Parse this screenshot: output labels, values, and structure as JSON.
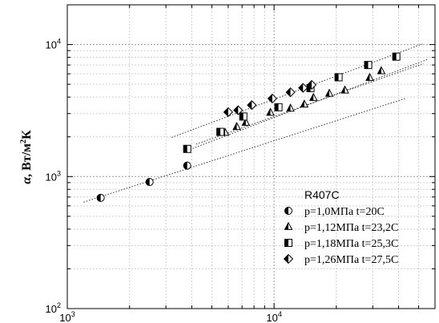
{
  "chart_data": {
    "type": "scatter",
    "x_scale": "log",
    "y_scale": "log",
    "xlim": [
      1000,
      60000
    ],
    "ylim": [
      100,
      20000
    ],
    "grid": true,
    "legend_placement": "bottom-right",
    "ylabel": {
      "symbol": "α",
      "unit_main": "Вт/м",
      "unit_sup": "2",
      "unit_end": "К"
    },
    "x_ticks": [
      {
        "value": 1000,
        "base": "10",
        "exp": "3"
      },
      {
        "value": 10000,
        "base": "10",
        "exp": "4"
      }
    ],
    "y_ticks": [
      {
        "value": 100,
        "base": "10",
        "exp": "2"
      },
      {
        "value": 1000,
        "base": "10",
        "exp": "3"
      },
      {
        "value": 10000,
        "base": "10",
        "exp": "4"
      }
    ],
    "legend_title": "R407C",
    "series": [
      {
        "name": "p=1,0МПа t=20C",
        "marker": "circle-half",
        "x": [
          1450,
          2500,
          3800
        ],
        "y": [
          690,
          910,
          1210
        ]
      },
      {
        "name": "p=1,12МПа t=23,2C",
        "marker": "triangle-half",
        "x": [
          5800,
          6600,
          7300,
          9600,
          12000,
          14000,
          15500,
          18500,
          22000,
          29000,
          33000
        ],
        "y": [
          2150,
          2380,
          2560,
          3050,
          3280,
          3520,
          3950,
          4250,
          4500,
          5600,
          6300
        ]
      },
      {
        "name": "p=1,18МПа t=25,3C",
        "marker": "square-half",
        "x": [
          3800,
          5500,
          7100,
          10500,
          15000,
          20500,
          28500,
          39000
        ],
        "y": [
          1620,
          2180,
          2850,
          3350,
          4680,
          5650,
          7000,
          8100
        ]
      },
      {
        "name": "p=1,26МПа t=27,5C",
        "marker": "diamond-half",
        "x": [
          6000,
          6700,
          7800,
          9800,
          12000,
          13800,
          15200
        ],
        "y": [
          3080,
          3180,
          3480,
          3900,
          4350,
          4700,
          4950
        ]
      }
    ],
    "fit_lines": [
      {
        "x": [
          1200,
          43000
        ],
        "y": [
          640,
          3900
        ]
      },
      {
        "x": [
          4200,
          53000
        ],
        "y": [
          1760,
          7200
        ]
      },
      {
        "x": [
          3700,
          55000
        ],
        "y": [
          1550,
          7700
        ]
      },
      {
        "x": [
          3200,
          53000
        ],
        "y": [
          1980,
          10200
        ]
      }
    ]
  }
}
